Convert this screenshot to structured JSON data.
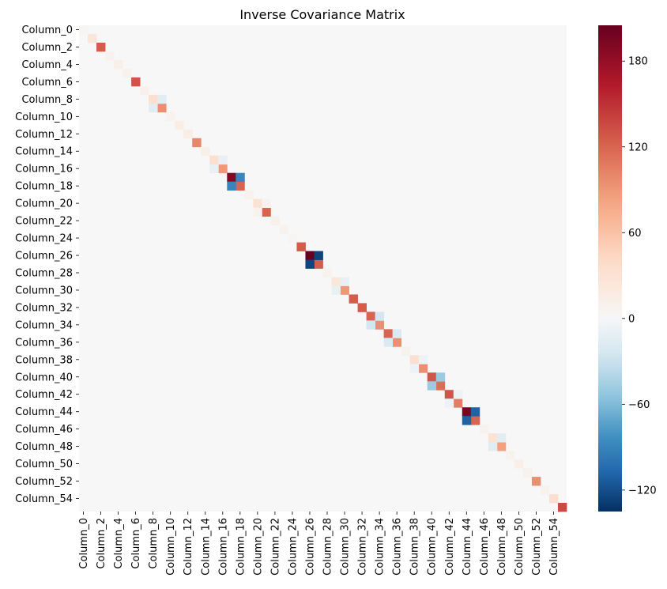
{
  "chart_data": {
    "type": "heatmap",
    "title": "Inverse Covariance Matrix",
    "size": 56,
    "label_prefix": "Column_",
    "tick_labels": [
      "Column_0",
      "Column_2",
      "Column_4",
      "Column_6",
      "Column_8",
      "Column_10",
      "Column_12",
      "Column_14",
      "Column_16",
      "Column_18",
      "Column_20",
      "Column_22",
      "Column_24",
      "Column_26",
      "Column_28",
      "Column_30",
      "Column_32",
      "Column_34",
      "Column_36",
      "Column_38",
      "Column_40",
      "Column_42",
      "Column_44",
      "Column_46",
      "Column_48",
      "Column_50",
      "Column_52",
      "Column_54"
    ],
    "tick_step": 2,
    "colormap": "RdBu_r",
    "vmin": -135,
    "vmax": 205,
    "background_value": 0,
    "colorbar_ticks": [
      180,
      120,
      60,
      0,
      -60,
      -120
    ],
    "colorbar_tick_labels": [
      "180",
      "120",
      "60",
      "0",
      "−60",
      "−120"
    ],
    "diagonal": [
      3,
      25,
      125,
      8,
      12,
      8,
      130,
      10,
      35,
      95,
      8,
      15,
      15,
      100,
      12,
      35,
      90,
      190,
      120,
      8,
      30,
      120,
      10,
      8,
      5,
      125,
      205,
      125,
      8,
      25,
      90,
      125,
      125,
      120,
      95,
      120,
      95,
      8,
      35,
      95,
      130,
      115,
      130,
      105,
      195,
      120,
      8,
      30,
      85,
      8,
      12,
      8,
      95,
      8,
      35,
      135
    ],
    "offdiagonal": [
      {
        "i": 8,
        "j": 9,
        "v": -15
      },
      {
        "i": 15,
        "j": 16,
        "v": -10
      },
      {
        "i": 17,
        "j": 18,
        "v": -90
      },
      {
        "i": 20,
        "j": 21,
        "v": 8
      },
      {
        "i": 26,
        "j": 27,
        "v": -125
      },
      {
        "i": 29,
        "j": 30,
        "v": -10
      },
      {
        "i": 33,
        "j": 34,
        "v": -25
      },
      {
        "i": 35,
        "j": 36,
        "v": -20
      },
      {
        "i": 38,
        "j": 39,
        "v": -8
      },
      {
        "i": 40,
        "j": 41,
        "v": -50
      },
      {
        "i": 42,
        "j": 43,
        "v": -8
      },
      {
        "i": 44,
        "j": 45,
        "v": -110
      },
      {
        "i": 47,
        "j": 48,
        "v": -15
      }
    ]
  }
}
